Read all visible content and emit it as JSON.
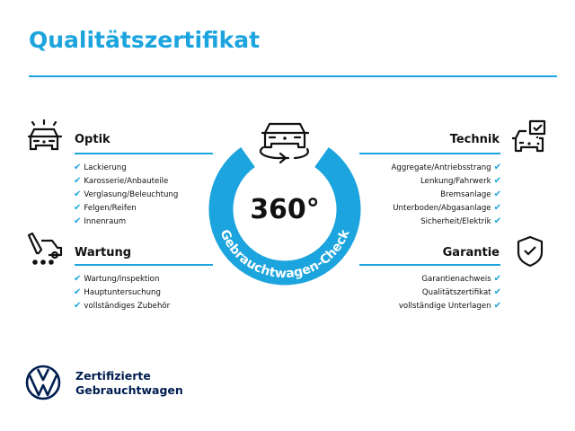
{
  "title": "Qualitätszertifikat",
  "colors": {
    "accent": "#1ba4dd",
    "brand_navy": "#001e50",
    "text": "#111111"
  },
  "center_badge": {
    "value": "360°",
    "arc_text": "Gebrauchtwagen-Check",
    "icon": "car-rotate-icon"
  },
  "sections": {
    "optik": {
      "heading": "Optik",
      "icon": "car-lights-icon",
      "items": [
        "Lackierung",
        "Karosserie/Anbauteile",
        "Verglasung/Beleuchtung",
        "Felgen/Reifen",
        "Innenraum"
      ]
    },
    "wartung": {
      "heading": "Wartung",
      "icon": "service-tools-icon",
      "items": [
        "Wartung/Inspektion",
        "Hauptuntersuchung",
        "vollständiges Zubehör"
      ]
    },
    "technik": {
      "heading": "Technik",
      "icon": "car-checkbox-icon",
      "items": [
        "Aggregate/Antriebsstrang",
        "Lenkung/Fahrwerk",
        "Bremsanlage",
        "Unterboden/Abgasanlage",
        "Sicherheit/Elektrik"
      ]
    },
    "garantie": {
      "heading": "Garantie",
      "icon": "shield-check-icon",
      "items": [
        "Garantienachweis",
        "Qualitätszertifikat",
        "vollständige Unterlagen"
      ]
    }
  },
  "check_glyph": "✔",
  "footer": {
    "logo": "VW",
    "line1": "Zertifizierte",
    "line2": "Gebrauchtwagen"
  }
}
